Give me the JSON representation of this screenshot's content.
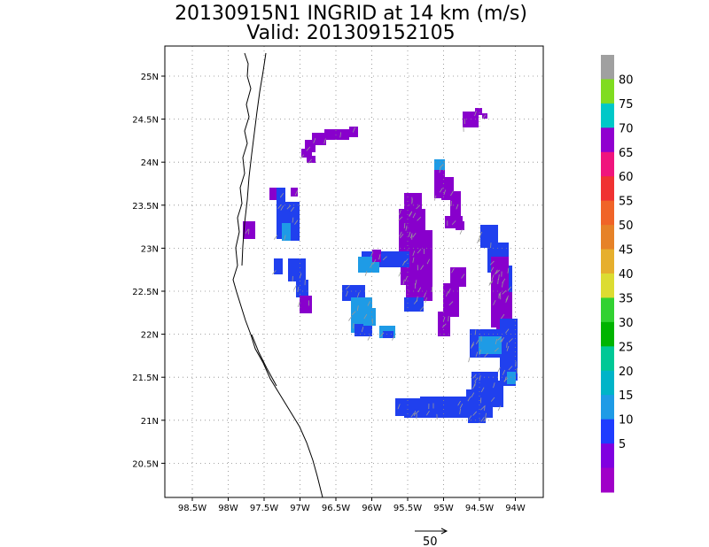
{
  "title": {
    "line1": "20130915N1 INGRID at 14 km (m/s)",
    "line2": "Valid: 201309152105"
  },
  "axes": {
    "x_ticks": [
      "98.5W",
      "98W",
      "97.5W",
      "97W",
      "96.5W",
      "96W",
      "95.5W",
      "95W",
      "94.5W",
      "94W"
    ],
    "y_ticks": [
      "25N",
      "24.5N",
      "24N",
      "23.5N",
      "23N",
      "22.5N",
      "22N",
      "21.5N",
      "21N",
      "20.5N"
    ]
  },
  "colorbar": {
    "labels": [
      "80",
      "75",
      "70",
      "65",
      "60",
      "55",
      "50",
      "45",
      "40",
      "35",
      "30",
      "25",
      "20",
      "15",
      "10",
      "5"
    ],
    "colors": [
      "#a0a0a0",
      "#80dc20",
      "#00c8c8",
      "#9000d0",
      "#f0147d",
      "#f03232",
      "#f06428",
      "#e68228",
      "#e6af2d",
      "#dcdc32",
      "#32d232",
      "#00b400",
      "#00c896",
      "#00b4c8",
      "#1e9be6",
      "#1e3cff",
      "#8000e0",
      "#a000c8"
    ]
  },
  "reference_vector": {
    "label": "50"
  },
  "colors": {
    "magnitude_5": "#8800cc",
    "magnitude_10": "#2040ee",
    "magnitude_15": "#1e9be6",
    "coastline": "#000000",
    "grid": "#888888",
    "vector": "#999999"
  }
}
